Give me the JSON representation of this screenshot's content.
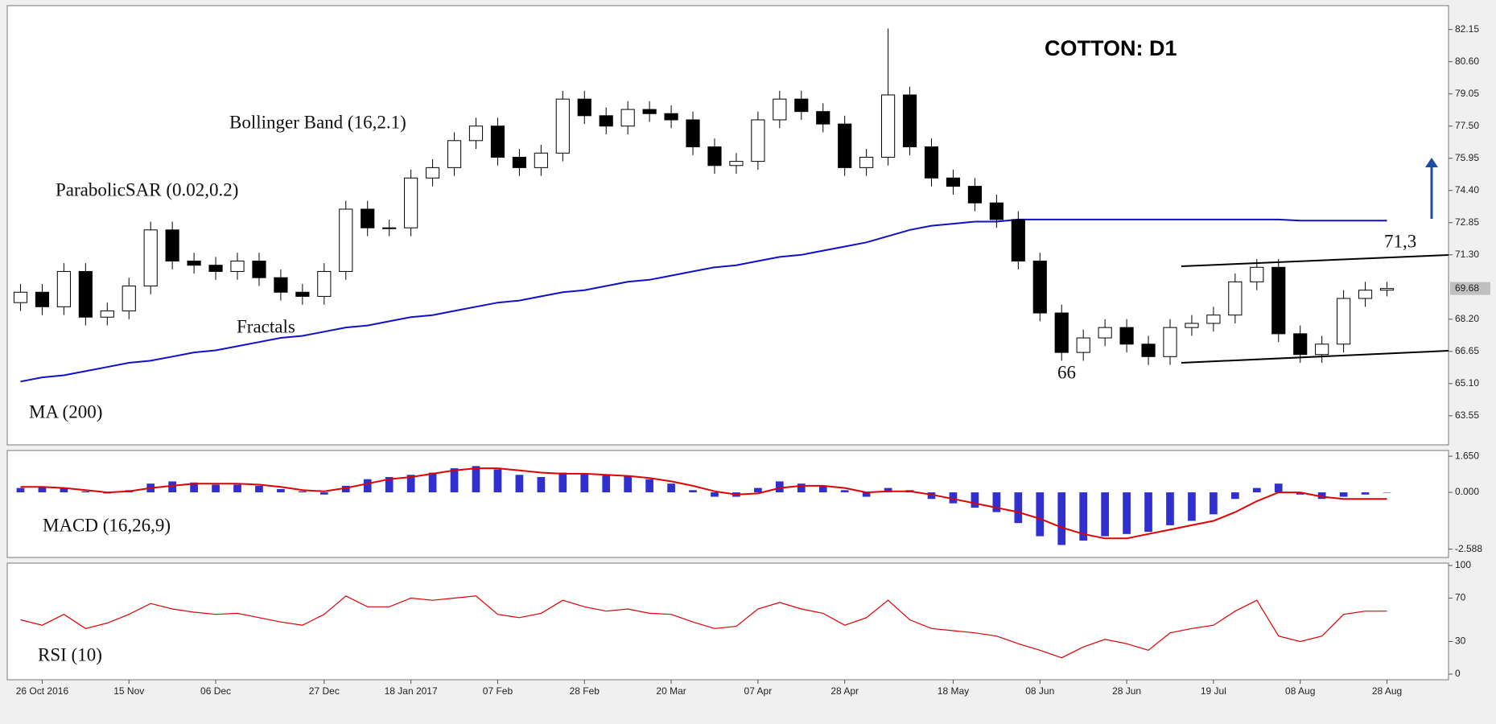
{
  "chart_data": [
    {
      "type": "candlestick",
      "title": "COTTON: D1",
      "annotations": [
        "Bollinger Band (16,2.1)",
        "ParabolicSAR (0.02,0.2)",
        "Fractals",
        "66",
        "71,3"
      ],
      "categories": [
        null,
        "26 Oct 2016",
        null,
        null,
        null,
        "15 Nov",
        null,
        null,
        null,
        "06 Dec",
        null,
        null,
        null,
        null,
        "27 Dec",
        null,
        null,
        null,
        "18 Jan 2017",
        null,
        null,
        null,
        "07 Feb",
        null,
        null,
        null,
        "28 Feb",
        null,
        null,
        null,
        "20 Mar",
        null,
        null,
        null,
        "07 Apr",
        null,
        null,
        null,
        "28 Apr",
        null,
        null,
        null,
        null,
        "18 May",
        null,
        null,
        null,
        "08 Jun",
        null,
        null,
        null,
        "28 Jun",
        null,
        null,
        null,
        "19 Jul",
        null,
        null,
        null,
        "08 Aug",
        null,
        null,
        null,
        "28 Aug"
      ],
      "open": [
        69.0,
        69.5,
        68.8,
        70.5,
        68.3,
        68.6,
        69.8,
        72.5,
        71.0,
        70.8,
        70.5,
        71.0,
        70.2,
        69.5,
        69.3,
        70.5,
        73.5,
        72.6,
        72.6,
        75.0,
        75.5,
        76.8,
        77.5,
        76.0,
        75.5,
        76.2,
        78.8,
        78.0,
        77.5,
        78.3,
        78.1,
        77.8,
        76.5,
        75.6,
        75.8,
        77.8,
        78.8,
        78.2,
        77.6,
        75.5,
        76.0,
        79.0,
        76.5,
        75.0,
        74.6,
        73.8,
        73.0,
        71.0,
        68.5,
        66.6,
        67.3,
        67.8,
        67.0,
        66.4,
        67.8,
        68.0,
        68.4,
        70.0,
        70.7,
        67.5,
        66.5,
        67.0,
        69.2,
        69.6
      ],
      "high": [
        69.9,
        69.9,
        70.9,
        70.9,
        69.0,
        70.2,
        72.9,
        72.9,
        71.4,
        71.2,
        71.4,
        71.4,
        70.6,
        69.9,
        70.9,
        73.9,
        73.9,
        73.0,
        75.4,
        75.9,
        77.2,
        77.9,
        77.9,
        76.4,
        76.6,
        79.2,
        79.2,
        78.4,
        78.7,
        78.7,
        78.5,
        78.2,
        76.9,
        76.2,
        78.2,
        79.2,
        79.2,
        78.6,
        78.0,
        76.4,
        82.2,
        79.4,
        76.9,
        75.4,
        75.0,
        74.2,
        73.4,
        71.4,
        68.9,
        67.7,
        68.2,
        68.2,
        67.4,
        68.2,
        68.4,
        68.8,
        70.4,
        71.1,
        71.1,
        67.9,
        67.4,
        69.6,
        70.0,
        70.0
      ],
      "low": [
        68.6,
        68.4,
        68.4,
        67.9,
        67.9,
        68.2,
        69.4,
        70.6,
        70.4,
        70.1,
        70.1,
        69.8,
        69.1,
        68.9,
        68.9,
        70.1,
        72.2,
        72.2,
        72.2,
        74.6,
        75.1,
        76.4,
        75.6,
        75.1,
        75.1,
        75.8,
        77.6,
        77.1,
        77.1,
        77.7,
        77.4,
        76.1,
        75.2,
        75.2,
        75.4,
        77.4,
        77.8,
        77.2,
        75.1,
        75.1,
        75.6,
        76.1,
        74.6,
        74.2,
        73.4,
        72.6,
        70.6,
        68.1,
        66.2,
        66.2,
        66.9,
        66.6,
        66.0,
        66.0,
        67.4,
        67.6,
        68.0,
        69.6,
        67.1,
        66.1,
        66.1,
        66.6,
        68.8,
        69.3
      ],
      "close": [
        69.5,
        68.8,
        70.5,
        68.3,
        68.6,
        69.8,
        72.5,
        71.0,
        70.8,
        70.5,
        71.0,
        70.2,
        69.5,
        69.3,
        70.5,
        73.5,
        72.6,
        72.6,
        75.0,
        75.5,
        76.8,
        77.5,
        76.0,
        75.5,
        76.2,
        78.8,
        78.0,
        77.5,
        78.3,
        78.1,
        77.8,
        76.5,
        75.6,
        75.8,
        77.8,
        78.8,
        78.2,
        77.6,
        75.5,
        76.0,
        79.0,
        76.5,
        75.0,
        74.6,
        73.8,
        73.0,
        71.0,
        68.5,
        66.6,
        67.3,
        67.8,
        67.0,
        66.4,
        67.8,
        68.0,
        68.4,
        70.0,
        70.7,
        67.5,
        66.5,
        67.0,
        69.2,
        69.6,
        69.68
      ],
      "up_color": "#ffffff",
      "down_color": "#000000",
      "series": [
        {
          "name": "MA (200)",
          "color": "#1010c8",
          "values": [
            65.2,
            65.4,
            65.5,
            65.7,
            65.9,
            66.1,
            66.2,
            66.4,
            66.6,
            66.7,
            66.9,
            67.1,
            67.3,
            67.4,
            67.6,
            67.8,
            67.9,
            68.1,
            68.3,
            68.4,
            68.6,
            68.8,
            69.0,
            69.1,
            69.3,
            69.5,
            69.6,
            69.8,
            70.0,
            70.1,
            70.3,
            70.5,
            70.7,
            70.8,
            71.0,
            71.2,
            71.3,
            71.5,
            71.7,
            71.9,
            72.2,
            72.5,
            72.7,
            72.8,
            72.9,
            72.9,
            73.0,
            73.0,
            73.0,
            73.0,
            73.0,
            73.0,
            73.0,
            73.0,
            73.0,
            73.0,
            73.0,
            73.0,
            73.0,
            72.95,
            72.95,
            72.95,
            72.95,
            72.95
          ]
        }
      ],
      "last_value": 69.68,
      "ylim": [
        62.15,
        83.3
      ],
      "yticks": [
        82.15,
        {
          "value": 80.6,
          "label": "80.60"
        },
        79.05,
        {
          "value": 77.5,
          "label": "77.50"
        },
        75.95,
        {
          "value": 74.4,
          "label": "74.40"
        },
        72.85,
        {
          "value": 71.3,
          "label": "71.30"
        },
        {
          "value": 68.2,
          "label": "68.20"
        },
        66.65,
        {
          "value": 65.1,
          "label": "65.10"
        },
        63.55
      ]
    },
    {
      "type": "macd",
      "title": "MACD (16,26,9)",
      "histogram": {
        "color": "#3030d0",
        "values": [
          0.2,
          0.25,
          0.2,
          0.05,
          -0.05,
          0.1,
          0.4,
          0.5,
          0.45,
          0.35,
          0.35,
          0.3,
          0.15,
          0.05,
          -0.1,
          0.3,
          0.6,
          0.7,
          0.8,
          0.9,
          1.1,
          1.2,
          1.05,
          0.8,
          0.7,
          0.9,
          0.85,
          0.8,
          0.75,
          0.6,
          0.4,
          0.1,
          -0.2,
          -0.2,
          0.2,
          0.5,
          0.4,
          0.3,
          0.1,
          -0.2,
          0.2,
          0.1,
          -0.3,
          -0.5,
          -0.7,
          -0.9,
          -1.4,
          -2.0,
          -2.4,
          -2.2,
          -2.0,
          -1.9,
          -1.8,
          -1.5,
          -1.3,
          -1.0,
          -0.3,
          0.2,
          0.4,
          -0.1,
          -0.3,
          -0.2,
          -0.1,
          0.0
        ]
      },
      "signal": {
        "color": "#e00000",
        "values": [
          0.25,
          0.25,
          0.2,
          0.1,
          0.0,
          0.05,
          0.2,
          0.3,
          0.4,
          0.4,
          0.4,
          0.35,
          0.25,
          0.1,
          0.05,
          0.2,
          0.4,
          0.6,
          0.7,
          0.85,
          1.0,
          1.1,
          1.1,
          1.0,
          0.9,
          0.85,
          0.85,
          0.8,
          0.75,
          0.65,
          0.5,
          0.3,
          0.05,
          -0.1,
          -0.05,
          0.2,
          0.3,
          0.3,
          0.2,
          0.0,
          0.05,
          0.05,
          -0.1,
          -0.3,
          -0.5,
          -0.7,
          -0.9,
          -1.2,
          -1.6,
          -1.9,
          -2.1,
          -2.1,
          -1.9,
          -1.7,
          -1.5,
          -1.3,
          -0.9,
          -0.4,
          0.0,
          0.0,
          -0.2,
          -0.3,
          -0.3,
          -0.3
        ]
      },
      "ylim": [
        -2.97,
        1.91
      ],
      "yticks": [
        {
          "value": 1.65,
          "label": "1.650"
        },
        {
          "value": 0,
          "label": "0.000"
        },
        {
          "value": -2.588,
          "label": "-2.588"
        }
      ]
    },
    {
      "type": "line",
      "title": "RSI (10)",
      "color": "#e00000",
      "values": [
        50,
        45,
        55,
        42,
        47,
        55,
        65,
        60,
        57,
        55,
        56,
        52,
        48,
        45,
        55,
        72,
        62,
        62,
        70,
        68,
        70,
        72,
        55,
        52,
        56,
        68,
        62,
        58,
        60,
        56,
        55,
        48,
        42,
        44,
        60,
        66,
        60,
        56,
        45,
        52,
        68,
        50,
        42,
        40,
        38,
        35,
        28,
        22,
        15,
        25,
        32,
        28,
        22,
        38,
        42,
        45,
        58,
        68,
        35,
        30,
        35,
        55,
        58,
        58
      ],
      "ylim": [
        -5.2,
        102.2
      ],
      "yticks": [
        100,
        70,
        30,
        0
      ]
    }
  ]
}
